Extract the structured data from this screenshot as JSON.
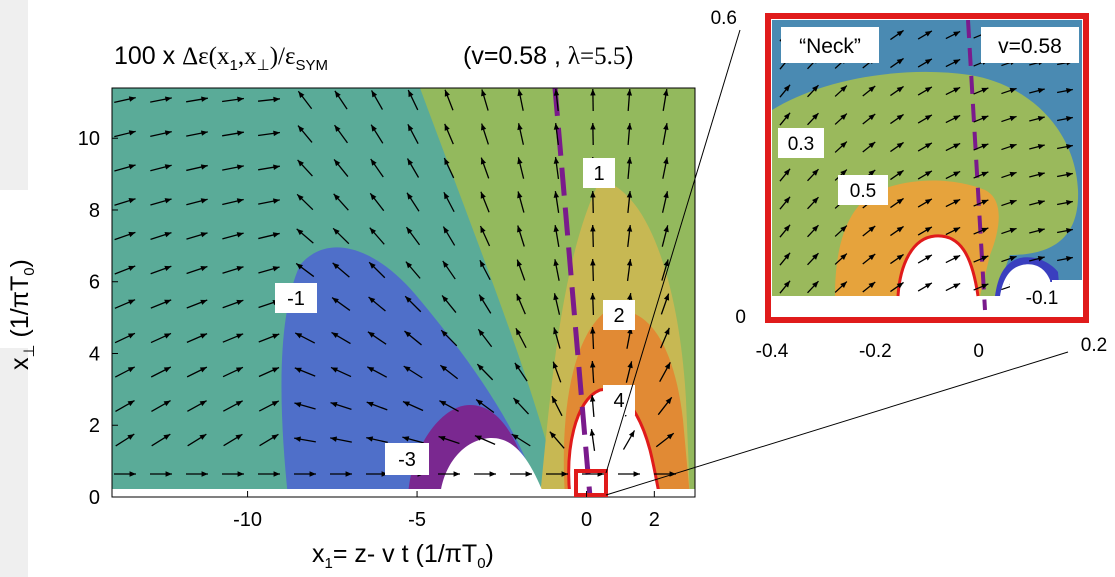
{
  "chart_data": [
    {
      "type": "heatmap",
      "title": {
        "prefix": "100 x ",
        "symbol": "Δε(x",
        "sub1": "1",
        "mid": ",x",
        "sub2": "⊥",
        "close": ")/ε",
        "sub3": "SYM"
      },
      "params": {
        "open": "(v=0.58 , ",
        "lambda": "λ=5.5",
        "close": ")"
      },
      "xlabel": {
        "main": "x",
        "sub1": "1",
        "rest": "= z- v t   (1/πT",
        "sub0": "0",
        "close": ")"
      },
      "ylabel": {
        "main": "x",
        "sub": "⊥",
        "rest": "  (1/πT",
        "sub0": "0",
        "close": ")"
      },
      "xlim": [
        -14,
        3.2
      ],
      "ylim": [
        0,
        11.4
      ],
      "xticks": [
        {
          "value": -10,
          "label": "-10"
        },
        {
          "value": -5,
          "label": "-5"
        },
        {
          "value": 0,
          "label": "0"
        },
        {
          "value": 2,
          "label": "2"
        }
      ],
      "yticks": [
        {
          "value": 0,
          "label": "0"
        },
        {
          "value": 2,
          "label": "2"
        },
        {
          "value": 4,
          "label": "4"
        },
        {
          "value": 6,
          "label": "6"
        },
        {
          "value": 8,
          "label": "8"
        },
        {
          "value": 10,
          "label": "10"
        }
      ],
      "contour_labels": [
        {
          "text": "-1",
          "x": -8.6,
          "y": 6.2
        },
        {
          "text": "1",
          "x": 0.3,
          "y": 9.8
        },
        {
          "text": "2",
          "x": 0.8,
          "y": 5.5
        },
        {
          "text": "4",
          "x": 0.9,
          "y": 2.9
        },
        {
          "text": "-3",
          "x": -5.6,
          "y": 1.2
        }
      ],
      "colors": {
        "teal": "#5aab98",
        "olive": "#93b95d",
        "yellow": "#c7b853",
        "orange": "#e18a34",
        "blue": "#4f6fc9",
        "purple": "#7a2890",
        "white": "#ffffff",
        "red": "#e01b1b",
        "dashed_line": "#7a1a8c"
      },
      "zoom_box": {
        "x": [
          -0.4,
          0.2
        ],
        "y": [
          0,
          0.6
        ]
      }
    },
    {
      "type": "heatmap",
      "title": "Neck",
      "param_label": "v=0.58",
      "xlim": [
        -0.4,
        0.2
      ],
      "ylim": [
        0,
        0.6
      ],
      "xticks": [
        {
          "value": -0.4,
          "label": "-0.4"
        },
        {
          "value": -0.2,
          "label": "-0.2"
        },
        {
          "value": 0,
          "label": "0"
        },
        {
          "value": 0.2,
          "label": "0.2"
        }
      ],
      "yticks": [
        {
          "value": 0,
          "label": "0"
        },
        {
          "value": 0.6,
          "label": "0.6"
        }
      ],
      "contour_labels": [
        {
          "text": "0.3",
          "x": -0.37,
          "y": 0.42
        },
        {
          "text": "0.5",
          "x": -0.28,
          "y": 0.33
        },
        {
          "text": "-0.1",
          "x": 0.1,
          "y": 0.03
        }
      ],
      "colors": {
        "blue": "#4a8ab2",
        "green": "#9ab95c",
        "orange": "#e6a33c",
        "dark_blue": "#3a3fbf",
        "frame": "#e01b1b",
        "title_text": "#e01b1b"
      }
    }
  ]
}
